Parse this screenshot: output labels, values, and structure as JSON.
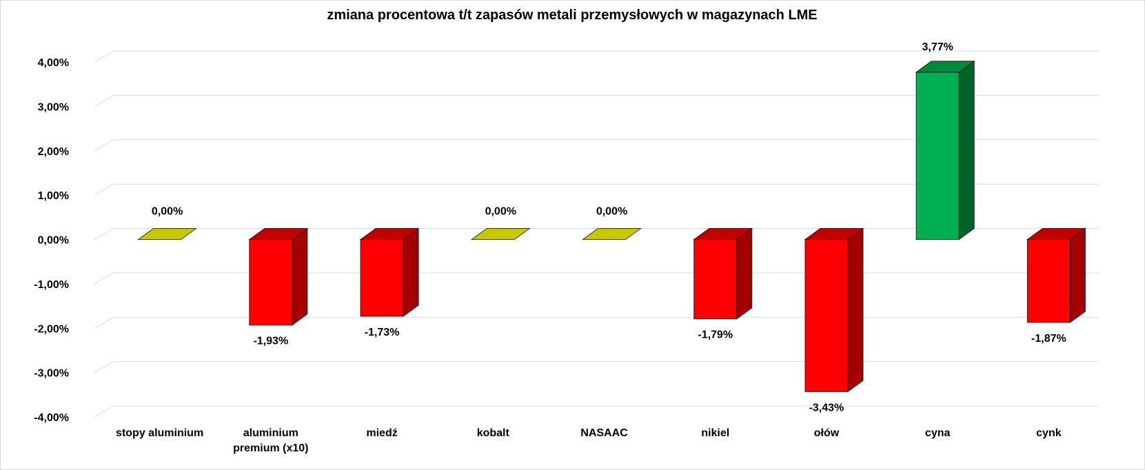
{
  "chart_data": {
    "type": "bar",
    "title": "zmiana procentowa t/t zapasów metali przemysłowych w magazynach LME",
    "categories": [
      "stopy aluminium",
      "aluminium premium (x10)",
      "miedź",
      "kobalt",
      "NASAAC",
      "nikiel",
      "ołów",
      "cyna",
      "cynk"
    ],
    "category_lines": [
      [
        "stopy aluminium"
      ],
      [
        "aluminium",
        "premium (x10)"
      ],
      [
        "miedź"
      ],
      [
        "kobalt"
      ],
      [
        "NASAAC"
      ],
      [
        "nikiel"
      ],
      [
        "ołów"
      ],
      [
        "cyna"
      ],
      [
        "cynk"
      ]
    ],
    "series": [
      {
        "values": [
          0.0,
          -1.93,
          -1.73,
          0.0,
          0.0,
          -1.79,
          -3.43,
          3.77,
          -1.87
        ],
        "labels": [
          "0,00%",
          "-1,93%",
          "-1,73%",
          "0,00%",
          "0,00%",
          "-1,79%",
          "-3,43%",
          "3,77%",
          "-1,87%"
        ]
      }
    ],
    "ylim": [
      -4,
      4
    ],
    "yticks": [
      4,
      3,
      2,
      1,
      0,
      -1,
      -2,
      -3,
      -4
    ],
    "ytick_labels": [
      "4,00%",
      "3,00%",
      "2,00%",
      "1,00%",
      "0,00%",
      "-1,00%",
      "-2,00%",
      "-3,00%",
      "-4,00%"
    ],
    "xlabel": "",
    "ylabel": "",
    "grid": true,
    "style": "3d-column",
    "colors": {
      "negative_front": "#ff0000",
      "negative_side": "#a50000",
      "negative_top": "#c00000",
      "positive_front": "#00b050",
      "positive_side": "#006428",
      "positive_top": "#008a3c",
      "zero_top": "#c8c800",
      "grid": "#d9d9d9"
    }
  }
}
